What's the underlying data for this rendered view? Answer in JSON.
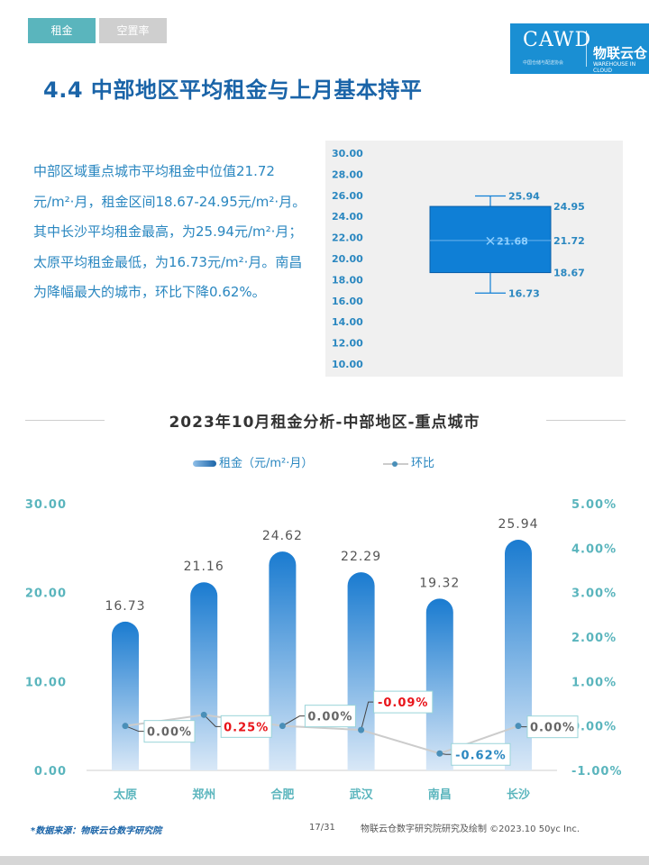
{
  "tabs": [
    {
      "label": "租金",
      "active": true
    },
    {
      "label": "空置率",
      "active": false
    }
  ],
  "logo": {
    "brand": "CAWD",
    "sub": "中国仓储与配送协会",
    "name": "物联云仓",
    "name_en": "WAREHOUSE IN CLOUD"
  },
  "page_title": "4.4 中部地区平均租金与上月基本持平",
  "description": [
    "中部区域重点城市平均租金中位值21.72元/m²·月，租金区间18.67-24.95元/m²·月。",
    "其中长沙平均租金最高，为25.94元/m²·月；太原平均租金最低，为16.73元/m²·月。南昌为降幅最大的城市，环比下降0.62%。"
  ],
  "colors": {
    "accent": "#1a64a8",
    "bar_top": "#1a7bd0",
    "bar_bottom": "#d9e8f7",
    "teal": "#5ab5bd",
    "negative": "#e8141a",
    "box_fill": "#0f7fd6"
  },
  "chart_data": [
    {
      "type": "box",
      "yticks": [
        "30.00",
        "28.00",
        "26.00",
        "24.00",
        "22.00",
        "20.00",
        "18.00",
        "16.00",
        "14.00",
        "12.00",
        "10.00"
      ],
      "ylim": [
        10,
        30
      ],
      "max": 25.94,
      "q3": 24.95,
      "median": 21.72,
      "mean": 21.68,
      "q1": 18.67,
      "min": 16.73,
      "labels": {
        "max": "25.94",
        "q3": "24.95",
        "median": "21.72",
        "mean": "21.68",
        "q1": "18.67",
        "min": "16.73"
      }
    },
    {
      "type": "bar",
      "title": "2023年10月租金分析-中部地区-重点城市",
      "categories": [
        "太原",
        "郑州",
        "合肥",
        "武汉",
        "南昌",
        "长沙"
      ],
      "series": [
        {
          "name": "租金（元/m²·月）",
          "values": [
            16.73,
            21.16,
            24.62,
            22.29,
            19.32,
            25.94
          ],
          "labels": [
            "16.73",
            "21.16",
            "24.62",
            "22.29",
            "19.32",
            "25.94"
          ]
        },
        {
          "name": "环比",
          "type": "line",
          "values": [
            0.0,
            0.25,
            0.0,
            -0.09,
            -0.62,
            0.0
          ],
          "labels": [
            "0.00%",
            "0.25%",
            "0.00%",
            "-0.09%",
            "-0.62%",
            "0.00%"
          ]
        }
      ],
      "ylim": [
        0,
        30
      ],
      "yticks": [
        "0.00",
        "10.00",
        "20.00",
        "30.00"
      ],
      "y2lim": [
        -1,
        5
      ],
      "y2ticks": [
        "-1.00%",
        "0.00%",
        "1.00%",
        "2.00%",
        "3.00%",
        "4.00%",
        "5.00%"
      ]
    }
  ],
  "footer": {
    "source": "*数据来源：物联云仓数字研究院",
    "page": "17/31",
    "org": "物联云仓数字研究院研究及绘制 ©2023.10 50yc Inc."
  }
}
